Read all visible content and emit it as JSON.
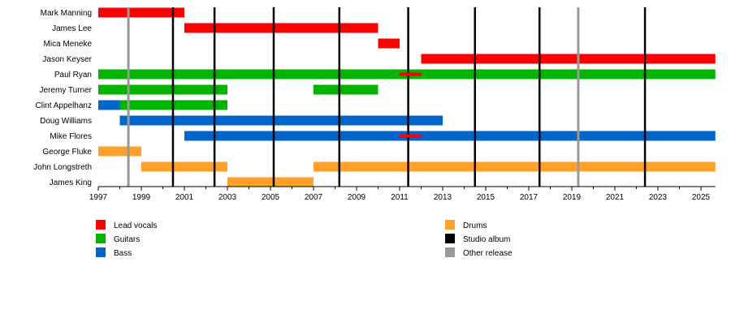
{
  "chart_data": {
    "type": "timeline",
    "xlim": [
      1997,
      2025.67
    ],
    "x_ticks": [
      "1997",
      "1999",
      "2001",
      "2003",
      "2005",
      "2007",
      "2009",
      "2011",
      "2013",
      "2015",
      "2017",
      "2019",
      "2021",
      "2023",
      "2025"
    ],
    "roles": {
      "Lead vocals": "#ff0000",
      "Guitars": "#00b400",
      "Bass": "#0064c8",
      "Drums": "#ffa028"
    },
    "members": [
      {
        "name": "Mark Manning",
        "spans": [
          {
            "role": "Lead vocals",
            "start": 1997,
            "end": 2001
          }
        ]
      },
      {
        "name": "James Lee",
        "spans": [
          {
            "role": "Lead vocals",
            "start": 2001,
            "end": 2010
          }
        ]
      },
      {
        "name": "Mica Meneke",
        "spans": [
          {
            "role": "Lead vocals",
            "start": 2010,
            "end": 2011
          }
        ]
      },
      {
        "name": "Jason Keyser",
        "spans": [
          {
            "role": "Lead vocals",
            "start": 2012,
            "end": 2025.67
          }
        ]
      },
      {
        "name": "Paul Ryan",
        "spans": [
          {
            "role": "Guitars",
            "start": 1997,
            "end": 2025.67
          },
          {
            "role": "Lead vocals",
            "start": 2011,
            "end": 2012,
            "thin": true
          }
        ]
      },
      {
        "name": "Jeremy Turner",
        "spans": [
          {
            "role": "Guitars",
            "start": 1997,
            "end": 2003
          },
          {
            "role": "Guitars",
            "start": 2007,
            "end": 2010
          }
        ]
      },
      {
        "name": "Clint Appelhanz",
        "spans": [
          {
            "role": "Bass",
            "start": 1997,
            "end": 1998
          },
          {
            "role": "Guitars",
            "start": 1998,
            "end": 2003
          }
        ]
      },
      {
        "name": "Doug Williams",
        "spans": [
          {
            "role": "Bass",
            "start": 1998,
            "end": 2013
          }
        ]
      },
      {
        "name": "Mike Flores",
        "spans": [
          {
            "role": "Bass",
            "start": 2001,
            "end": 2025.67
          },
          {
            "role": "Lead vocals",
            "start": 2011,
            "end": 2012,
            "thin": true
          }
        ]
      },
      {
        "name": "George Fluke",
        "spans": [
          {
            "role": "Drums",
            "start": 1997,
            "end": 1999
          }
        ]
      },
      {
        "name": "John Longstreth",
        "spans": [
          {
            "role": "Drums",
            "start": 1999,
            "end": 2003
          },
          {
            "role": "Drums",
            "start": 2007,
            "end": 2025.67
          }
        ]
      },
      {
        "name": "James King",
        "spans": [
          {
            "role": "Drums",
            "start": 2003,
            "end": 2007
          }
        ]
      }
    ],
    "studio_albums": [
      2000.47,
      2002.4,
      2005.15,
      2008.2,
      2011.4,
      2014.5,
      2017.5,
      2022.4
    ],
    "other_releases": [
      1998.4,
      2019.3
    ],
    "legend": [
      {
        "label": "Lead vocals",
        "color": "#ff0000"
      },
      {
        "label": "Guitars",
        "color": "#00b400"
      },
      {
        "label": "Bass",
        "color": "#0064c8"
      },
      {
        "label": "Drums",
        "color": "#ffa028"
      },
      {
        "label": "Studio album",
        "color": "#000000"
      },
      {
        "label": "Other release",
        "color": "#999999"
      }
    ]
  }
}
